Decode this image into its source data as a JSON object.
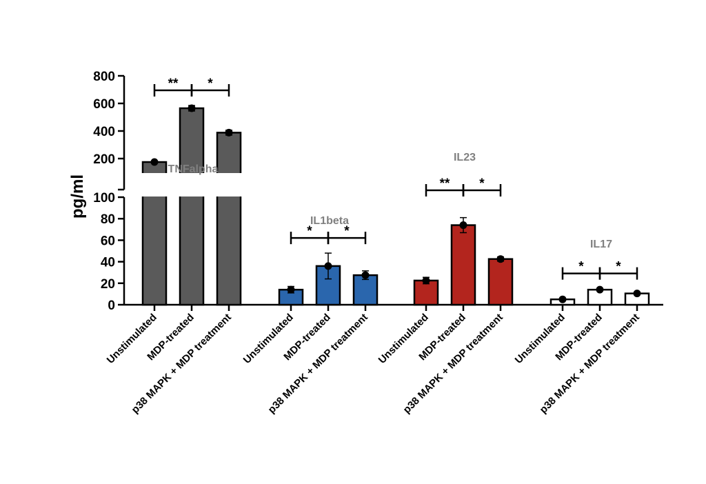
{
  "chart_data": {
    "type": "bar",
    "ylabel": "pg/ml",
    "y_axis": {
      "broken": true,
      "lower_range": [
        0,
        100
      ],
      "lower_ticks": [
        0,
        20,
        40,
        60,
        80,
        100
      ],
      "upper_range": [
        100,
        800
      ],
      "upper_ticks": [
        200,
        400,
        600,
        800
      ]
    },
    "categories": [
      "Unstimulated",
      "MDP-treated",
      "p38 MAPK + MDP treatment"
    ],
    "groups": [
      {
        "title": "TNFalpha",
        "color": "#5a5a5a",
        "values": [
          175,
          565,
          388
        ],
        "errors": [
          5,
          20,
          18
        ],
        "significance": [
          "**",
          "*"
        ]
      },
      {
        "title": "IL1beta",
        "color": "#2a66ad",
        "values": [
          14,
          36,
          27.5
        ],
        "errors": [
          3,
          12,
          4
        ],
        "significance": [
          "*",
          "*"
        ]
      },
      {
        "title": "IL23",
        "color": "#b3251e",
        "values": [
          22.5,
          74,
          42.5
        ],
        "errors": [
          3,
          7,
          2
        ],
        "significance": [
          "**",
          "*"
        ]
      },
      {
        "title": "IL17",
        "color": "#ffffff",
        "values": [
          5,
          14,
          10.5
        ],
        "errors": [
          0.5,
          1,
          0.5
        ],
        "significance": [
          "*",
          "*"
        ]
      }
    ]
  }
}
